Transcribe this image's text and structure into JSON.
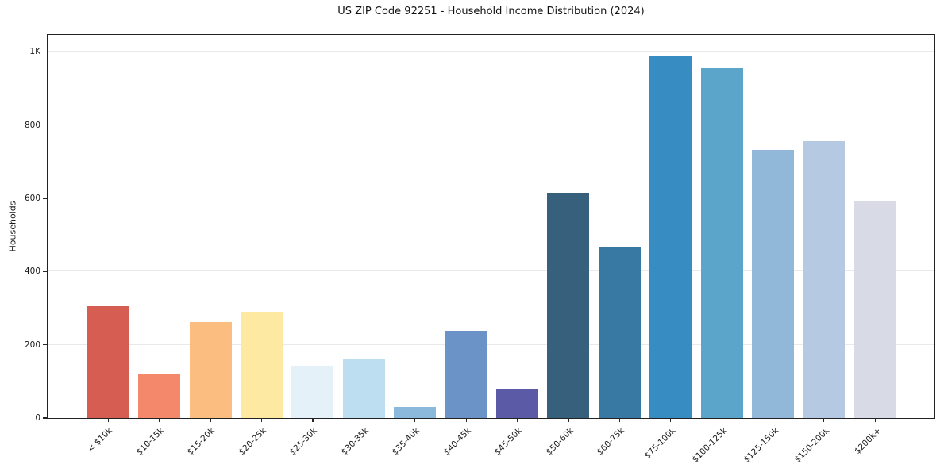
{
  "chart_data": {
    "type": "bar",
    "title": "US ZIP Code 92251 - Household Income Distribution (2024)",
    "xlabel": "",
    "ylabel": "Households",
    "categories": [
      "< $10k",
      "$10-15k",
      "$15-20k",
      "$20-25k",
      "$25-30k",
      "$30-35k",
      "$35-40k",
      "$40-45k",
      "$45-50k",
      "$50-60k",
      "$60-75k",
      "$75-100k",
      "$100-125k",
      "$125-150k",
      "$150-200k",
      "$200k+"
    ],
    "values": [
      305,
      120,
      261,
      291,
      143,
      162,
      30,
      238,
      80,
      616,
      468,
      990,
      955,
      731,
      755,
      593
    ],
    "bar_colors": [
      "#d65d52",
      "#f3886a",
      "#fcbe80",
      "#fde9a1",
      "#e5f1f9",
      "#bddef0",
      "#8ab9dc",
      "#6b93c8",
      "#5b5aa7",
      "#36607b",
      "#3879a4",
      "#378cc1",
      "#5ba4ca",
      "#92b8d9",
      "#b6c9e2",
      "#d8dae6"
    ],
    "ylim": [
      0,
      1046
    ],
    "ytick_values": [
      0,
      200,
      400,
      600,
      800,
      1000
    ],
    "ytick_labels": [
      "0",
      "200",
      "400",
      "600",
      "800",
      "1K"
    ],
    "grid": "horizontal",
    "legend": "none",
    "background_color": "#ffffff",
    "spine_color": "#222222",
    "gridline_color": "#e9e9e9"
  }
}
